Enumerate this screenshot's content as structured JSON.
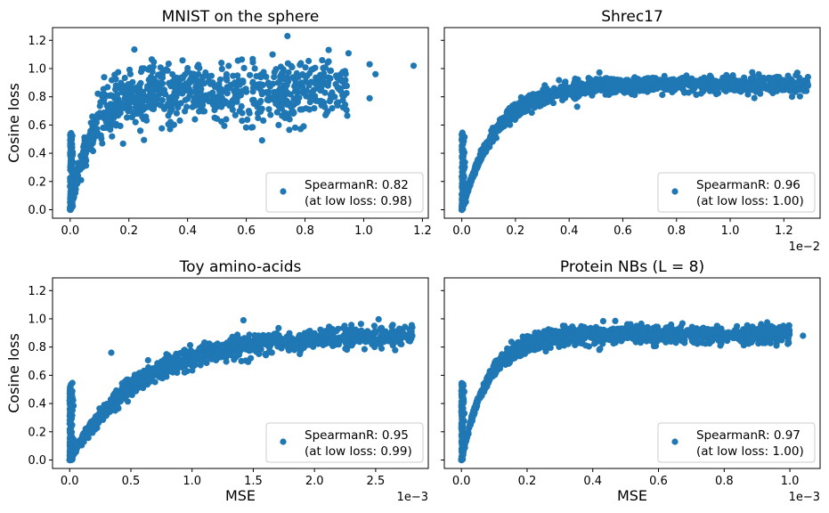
{
  "figure": {
    "marker_color": "#1f77b4",
    "axis_color": "#000000",
    "legend_border": "#cccccc"
  },
  "chart_data": [
    {
      "type": "scatter",
      "title": "MNIST on the sphere",
      "xlabel": "",
      "ylabel": "Cosine loss",
      "xlim": [
        -0.06,
        1.22
      ],
      "ylim": [
        -0.06,
        1.29
      ],
      "xticks": [
        0.0,
        0.2,
        0.4,
        0.6,
        0.8,
        1.0,
        1.2
      ],
      "xtick_labels": [
        "0.0",
        "0.2",
        "0.4",
        "0.6",
        "0.8",
        "1.0",
        "1.2"
      ],
      "yticks": [
        0.0,
        0.2,
        0.4,
        0.6,
        0.8,
        1.0,
        1.2
      ],
      "ytick_labels": [
        "0.0",
        "0.2",
        "0.4",
        "0.6",
        "0.8",
        "1.0",
        "1.2"
      ],
      "x_offset_label": "",
      "legend": {
        "line1": "SpearmanR: 0.82",
        "line2": "(at low loss: 0.98)",
        "loc": "lower right"
      },
      "grid": false,
      "series_shape": {
        "x_max": 0.95,
        "plateau": 0.85,
        "rate": 14,
        "noise": 0.11,
        "n": 900
      },
      "outliers": [
        [
          1.17,
          1.02
        ],
        [
          1.02,
          1.03
        ],
        [
          1.02,
          0.79
        ],
        [
          1.04,
          0.96
        ],
        [
          0.74,
          1.23
        ],
        [
          0.87,
          0.67
        ],
        [
          0.64,
          0.65
        ],
        [
          0.35,
          0.6
        ],
        [
          0.12,
          0.58
        ]
      ]
    },
    {
      "type": "scatter",
      "title": "Shrec17",
      "xlabel": "",
      "ylabel": "",
      "xlim": [
        -0.065,
        1.335
      ],
      "ylim": [
        -0.06,
        1.29
      ],
      "xticks": [
        0.0,
        0.2,
        0.4,
        0.6,
        0.8,
        1.0,
        1.2
      ],
      "xtick_labels": [
        "0.0",
        "0.2",
        "0.4",
        "0.6",
        "0.8",
        "1.0",
        "1.2"
      ],
      "yticks": [
        0.0,
        0.2,
        0.4,
        0.6,
        0.8,
        1.0,
        1.2
      ],
      "ytick_labels": [],
      "x_offset_label": "1e−2",
      "legend": {
        "line1": "SpearmanR: 0.96",
        "line2": "(at low loss: 1.00)",
        "loc": "lower right"
      },
      "grid": false,
      "series_shape": {
        "x_max": 1.29,
        "plateau": 0.89,
        "rate": 11,
        "noise": 0.03,
        "n": 1300
      },
      "outliers": [
        [
          1.25,
          0.97
        ],
        [
          1.29,
          0.94
        ],
        [
          0.43,
          0.73
        ]
      ]
    },
    {
      "type": "scatter",
      "title": "Toy amino-acids",
      "xlabel": "MSE",
      "ylabel": "Cosine loss",
      "xlim": [
        -0.14,
        2.93
      ],
      "ylim": [
        -0.06,
        1.29
      ],
      "xticks": [
        0.0,
        0.5,
        1.0,
        1.5,
        2.0,
        2.5
      ],
      "xtick_labels": [
        "0.0",
        "0.5",
        "1.0",
        "1.5",
        "2.0",
        "2.5"
      ],
      "yticks": [
        0.0,
        0.2,
        0.4,
        0.6,
        0.8,
        1.0,
        1.2
      ],
      "ytick_labels": [
        "0.0",
        "0.2",
        "0.4",
        "0.6",
        "0.8",
        "1.0",
        "1.2"
      ],
      "x_offset_label": "1e−3",
      "legend": {
        "line1": "SpearmanR: 0.95",
        "line2": "(at low loss: 0.99)",
        "loc": "lower right"
      },
      "grid": false,
      "series_shape": {
        "x_max": 2.8,
        "plateau": 0.88,
        "rate": 5.5,
        "noise": 0.035,
        "n": 1300
      },
      "outliers": [
        [
          1.42,
          0.99
        ],
        [
          1.08,
          0.74
        ],
        [
          1.36,
          0.73
        ],
        [
          0.34,
          0.76
        ],
        [
          2.8,
          0.94
        ],
        [
          2.8,
          0.88
        ]
      ]
    },
    {
      "type": "scatter",
      "title": "Protein NBs (L = 8)",
      "xlabel": "MSE",
      "ylabel": "",
      "xlim": [
        -0.052,
        1.092
      ],
      "ylim": [
        -0.06,
        1.29
      ],
      "xticks": [
        0.0,
        0.2,
        0.4,
        0.6,
        0.8,
        1.0
      ],
      "xtick_labels": [
        "0.0",
        "0.2",
        "0.4",
        "0.6",
        "0.8",
        "1.0"
      ],
      "yticks": [
        0.0,
        0.2,
        0.4,
        0.6,
        0.8,
        1.0,
        1.2
      ],
      "ytick_labels": [],
      "x_offset_label": "1e−3",
      "legend": {
        "line1": "SpearmanR: 0.97",
        "line2": "(at low loss: 1.00)",
        "loc": "lower right"
      },
      "grid": false,
      "series_shape": {
        "x_max": 1.0,
        "plateau": 0.89,
        "rate": 14,
        "noise": 0.03,
        "n": 1300
      },
      "outliers": [
        [
          0.98,
          0.95
        ],
        [
          1.04,
          0.88
        ],
        [
          0.42,
          0.78
        ]
      ]
    }
  ]
}
